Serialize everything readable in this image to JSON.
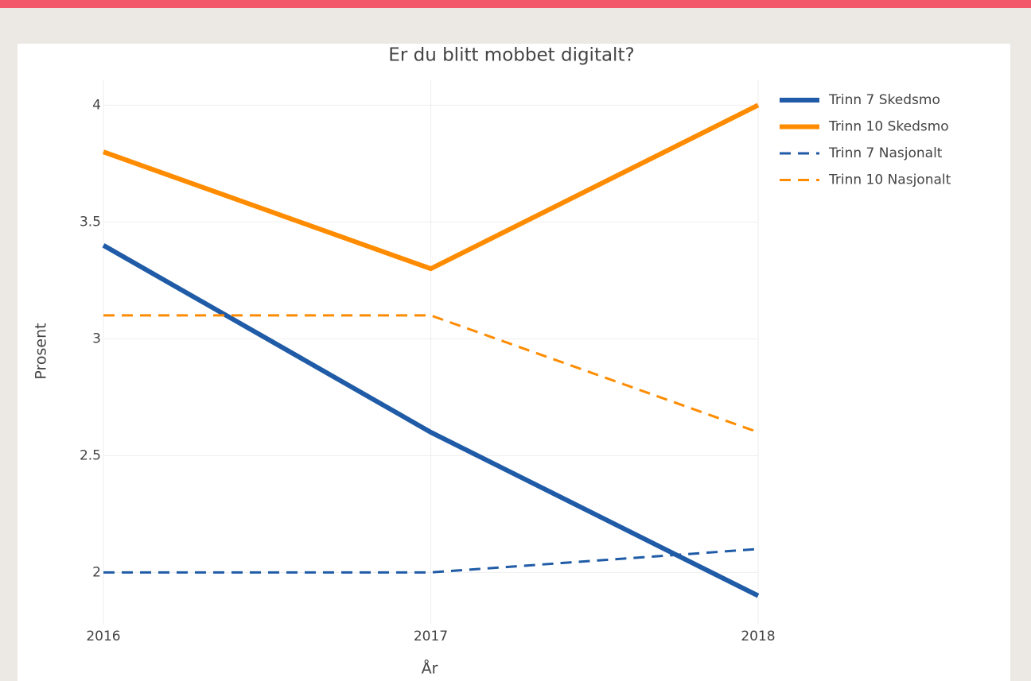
{
  "chart_data": {
    "type": "line",
    "title": "Er du blitt mobbet digitalt?",
    "x_label": "År",
    "y_label": "Prosent",
    "x": [
      2016,
      2017,
      2018
    ],
    "xlim": [
      2016,
      2018
    ],
    "xticks": [
      2016,
      2017,
      2018
    ],
    "ylim": [
      1.78,
      4.11
    ],
    "yticks": [
      2,
      2.5,
      3,
      3.5,
      4
    ],
    "grid": true,
    "legend": "top-right",
    "series": [
      {
        "name": "Trinn 7 Skedsmo",
        "color": "#1f5ba6",
        "dash": "solid",
        "values": [
          3.4,
          2.6,
          1.9
        ]
      },
      {
        "name": "Trinn 10 Skedsmo",
        "color": "#ff8c00",
        "dash": "solid",
        "values": [
          3.8,
          3.3,
          4.0
        ]
      },
      {
        "name": "Trinn 7 Nasjonalt",
        "color": "#1f5ba6",
        "dash": "dash",
        "values": [
          2.0,
          2.0,
          2.1
        ]
      },
      {
        "name": "Trinn 10 Nasjonalt",
        "color": "#ff8c00",
        "dash": "dash",
        "values": [
          3.1,
          3.1,
          2.6
        ]
      }
    ]
  }
}
